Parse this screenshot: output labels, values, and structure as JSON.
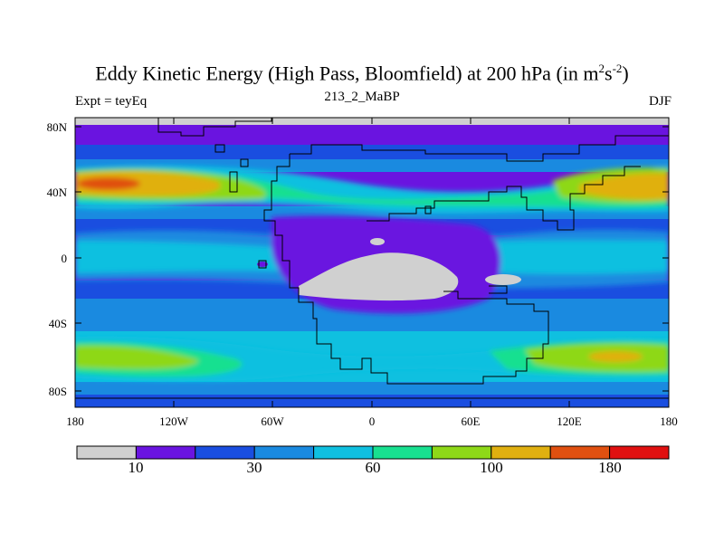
{
  "title": {
    "main": "Eddy Kinetic Energy (High Pass, Bloomfield) at 200 hPa (in m",
    "sup1": "2",
    "mid": "s",
    "sup2": "-2",
    "end": ")"
  },
  "subtitle": "213_2_MaBP",
  "left_label": "Expt = teyEq",
  "right_label": "DJF",
  "axes": {
    "y_ticks": [
      "80N",
      "40N",
      "0",
      "40S",
      "80S"
    ],
    "x_ticks": [
      "180",
      "120W",
      "60W",
      "0",
      "60E",
      "120E",
      "180"
    ]
  },
  "colorbar": {
    "colors": [
      "#d0d0d0",
      "#6a14e0",
      "#1a4ee0",
      "#1a8ae0",
      "#0fc0e0",
      "#18e090",
      "#8ed818",
      "#e0b010",
      "#e05010",
      "#e01010"
    ],
    "labels": [
      "10",
      "30",
      "60",
      "100",
      "180"
    ]
  }
}
